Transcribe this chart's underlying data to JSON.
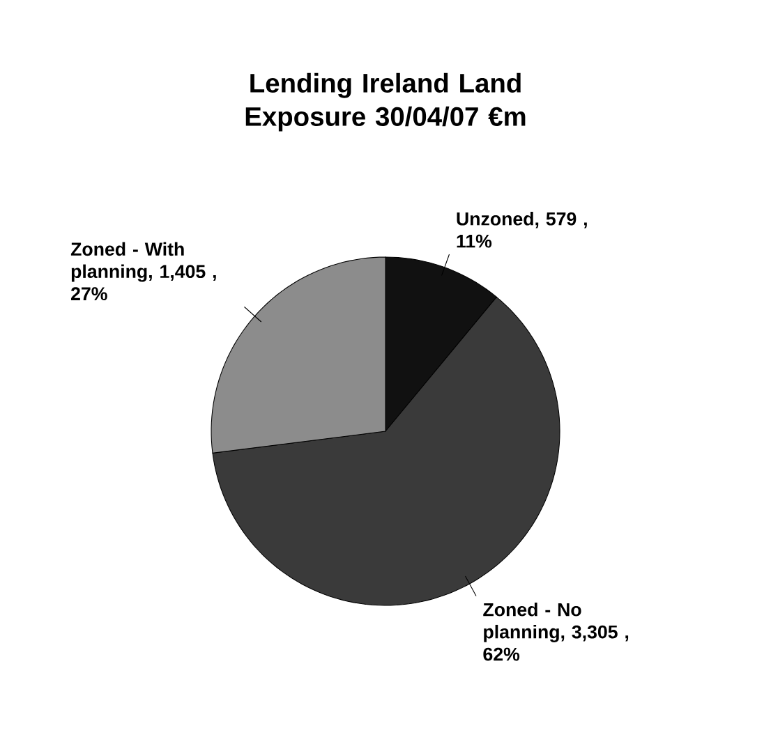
{
  "chart_data": {
    "type": "pie",
    "title": "Lending Ireland Land Exposure 30/04/07 €m",
    "categories": [
      "Unzoned",
      "Zoned - No planning",
      "Zoned - With planning"
    ],
    "values": [
      11,
      62,
      27
    ],
    "value_labels": [
      ", 579 , 11%",
      ", 3,305 , 62%",
      ", 1,405 , 27%"
    ],
    "colors": [
      "#111111",
      "#3a3a3a",
      "#8c8c8c"
    ]
  }
}
